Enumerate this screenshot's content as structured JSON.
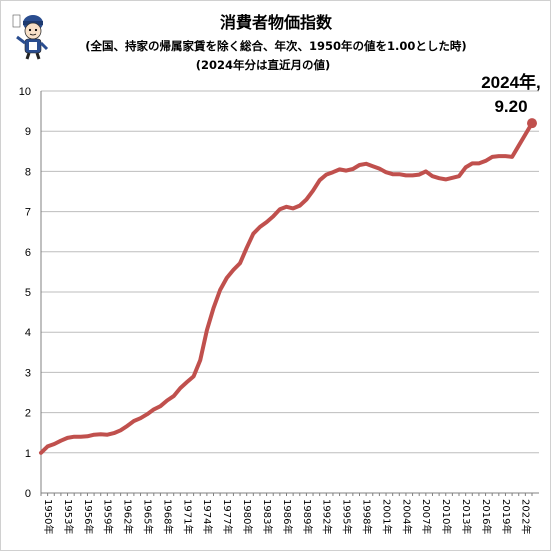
{
  "chart_data": {
    "type": "line",
    "title": "消費者物価指数",
    "subtitle_1": "(全国、持家の帰属家賃を除く総合、年次、1950年の値を1.00とした時)",
    "subtitle_2": "(2024年分は直近月の値)",
    "xlabel": "",
    "ylabel": "",
    "ylim": [
      0,
      10
    ],
    "yticks": [
      0,
      1,
      2,
      3,
      4,
      5,
      6,
      7,
      8,
      9,
      10
    ],
    "grid": true,
    "legend": "none",
    "xtick_labels": [
      "1950年",
      "1953年",
      "1956年",
      "1959年",
      "1962年",
      "1965年",
      "1968年",
      "1971年",
      "1974年",
      "1977年",
      "1980年",
      "1983年",
      "1986年",
      "1989年",
      "1992年",
      "1995年",
      "1998年",
      "2001年",
      "2004年",
      "2007年",
      "2010年",
      "2013年",
      "2016年",
      "2019年",
      "2022年"
    ],
    "annotation": {
      "line1": "2024年,",
      "line2": "9.20"
    },
    "line_color": "#c0504d",
    "x": [
      1950,
      1951,
      1952,
      1953,
      1954,
      1955,
      1956,
      1957,
      1958,
      1959,
      1960,
      1961,
      1962,
      1963,
      1964,
      1965,
      1966,
      1967,
      1968,
      1969,
      1970,
      1971,
      1972,
      1973,
      1974,
      1975,
      1976,
      1977,
      1978,
      1979,
      1980,
      1981,
      1982,
      1983,
      1984,
      1985,
      1986,
      1987,
      1988,
      1989,
      1990,
      1991,
      1992,
      1993,
      1994,
      1995,
      1996,
      1997,
      1998,
      1999,
      2000,
      2001,
      2002,
      2003,
      2004,
      2005,
      2006,
      2007,
      2008,
      2009,
      2010,
      2011,
      2012,
      2013,
      2014,
      2015,
      2016,
      2017,
      2018,
      2019,
      2020,
      2021,
      2022,
      2023,
      2024
    ],
    "values": [
      1.0,
      1.16,
      1.22,
      1.3,
      1.37,
      1.4,
      1.4,
      1.41,
      1.45,
      1.46,
      1.45,
      1.49,
      1.56,
      1.67,
      1.79,
      1.86,
      1.96,
      2.08,
      2.16,
      2.3,
      2.41,
      2.61,
      2.76,
      2.9,
      3.3,
      4.05,
      4.6,
      5.05,
      5.35,
      5.55,
      5.72,
      6.1,
      6.45,
      6.62,
      6.74,
      6.88,
      7.06,
      7.12,
      7.08,
      7.15,
      7.3,
      7.52,
      7.78,
      7.92,
      7.98,
      8.05,
      8.02,
      8.06,
      8.16,
      8.19,
      8.13,
      8.07,
      7.98,
      7.93,
      7.93,
      7.9,
      7.9,
      7.92,
      8.0,
      7.88,
      7.83,
      7.8,
      7.84,
      7.88,
      8.1,
      8.2,
      8.2,
      8.26,
      8.36,
      8.38,
      8.38,
      8.36,
      8.64,
      8.92,
      9.2
    ]
  }
}
